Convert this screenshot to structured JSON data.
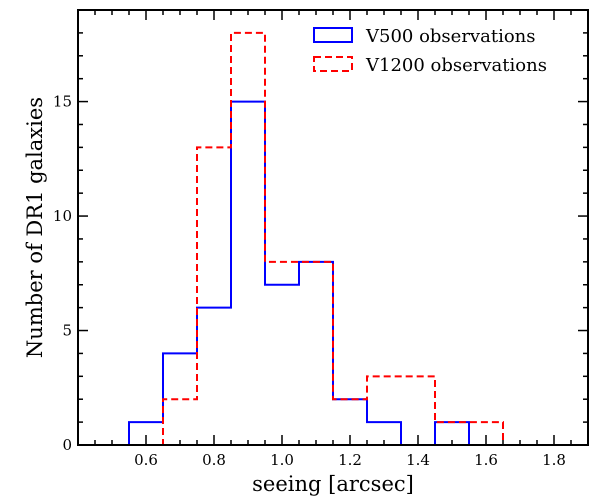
{
  "chart_data": {
    "type": "histogram",
    "title": "",
    "xlabel": "seeing [arcsec]",
    "ylabel": "Number of DR1 galaxies",
    "xlim": [
      0.4,
      1.9
    ],
    "ylim": [
      0,
      19
    ],
    "bin_edges": [
      0.55,
      0.65,
      0.75,
      0.85,
      0.95,
      1.05,
      1.15,
      1.25,
      1.35,
      1.45,
      1.55,
      1.65
    ],
    "x_major_ticks": [
      0.6,
      0.8,
      1.0,
      1.2,
      1.4,
      1.6,
      1.8
    ],
    "x_tick_labels": [
      "0.6",
      "0.8",
      "1.0",
      "1.2",
      "1.4",
      "1.6",
      "1.8"
    ],
    "y_major_ticks": [
      0,
      5,
      10,
      15
    ],
    "y_tick_labels": [
      "0",
      "5",
      "10",
      "15"
    ],
    "legend_position": "top-right",
    "series": [
      {
        "name": "V500 observations",
        "color": "#0000ff",
        "linestyle": "solid",
        "values": [
          1,
          4,
          6,
          15,
          7,
          8,
          2,
          1,
          0,
          1,
          0
        ]
      },
      {
        "name": "V1200 observations",
        "color": "#ff0000",
        "linestyle": "dashed",
        "values": [
          0,
          2,
          13,
          18,
          8,
          8,
          2,
          3,
          3,
          1,
          1
        ]
      }
    ]
  }
}
